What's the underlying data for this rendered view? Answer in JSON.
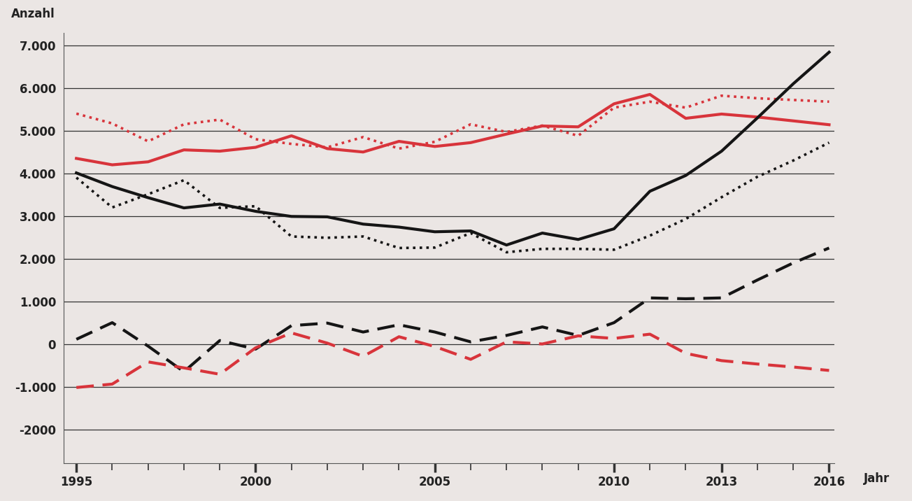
{
  "chart_data": {
    "type": "line",
    "y_label": "Anzahl",
    "x_label": "Jahr",
    "categories": [
      "1995",
      null,
      null,
      null,
      null,
      "2000",
      null,
      null,
      null,
      null,
      "2005",
      null,
      null,
      null,
      null,
      "2010",
      null,
      null,
      "2013",
      null,
      null,
      "2016"
    ],
    "ylim": [
      -2800,
      7300
    ],
    "yticks": [
      {
        "value": 7000,
        "label": "7.000"
      },
      {
        "value": 6000,
        "label": "6.000"
      },
      {
        "value": 5000,
        "label": "5.000"
      },
      {
        "value": 4000,
        "label": "4.000"
      },
      {
        "value": 3000,
        "label": "3.000"
      },
      {
        "value": 2000,
        "label": "2.000"
      },
      {
        "value": 1000,
        "label": "1.000"
      },
      0,
      {
        "value": -1000,
        "label": "-1.000"
      },
      -2000
    ],
    "grid": true,
    "series": [
      {
        "color": "#d8343b",
        "line_style": "solid",
        "values": [
          4350,
          4200,
          4270,
          4550,
          4520,
          4610,
          4880,
          4580,
          4500,
          4750,
          4630,
          4720,
          4920,
          5110,
          5090,
          5630,
          5850,
          5290,
          5390,
          5320,
          5230,
          5140
        ]
      },
      {
        "color": "#d8343b",
        "line_style": "dotted",
        "values": [
          5400,
          5170,
          4750,
          5150,
          5260,
          4800,
          4690,
          4610,
          4850,
          4580,
          4740,
          5150,
          4970,
          5120,
          4880,
          5540,
          5680,
          5540,
          5820,
          5760,
          5720,
          5680
        ]
      },
      {
        "color": "#151515",
        "line_style": "solid",
        "values": [
          4010,
          3690,
          3430,
          3190,
          3280,
          3110,
          2990,
          2980,
          2810,
          2740,
          2630,
          2650,
          2320,
          2600,
          2450,
          2700,
          3580,
          3950,
          4520,
          5300,
          6100,
          6840
        ]
      },
      {
        "color": "#151515",
        "line_style": "dotted",
        "values": [
          3900,
          3200,
          3510,
          3840,
          3190,
          3230,
          2520,
          2490,
          2520,
          2250,
          2260,
          2600,
          2150,
          2230,
          2230,
          2210,
          2540,
          2930,
          3440,
          3920,
          4300,
          4720
        ]
      },
      {
        "color": "#151515",
        "line_style": "dashed",
        "values": [
          110,
          500,
          -50,
          -650,
          80,
          -120,
          430,
          490,
          280,
          450,
          280,
          50,
          200,
          400,
          200,
          500,
          1080,
          1060,
          1080,
          1500,
          1900,
          2250
        ]
      },
      {
        "color": "#d8343b",
        "line_style": "dashed",
        "values": [
          -1020,
          -940,
          -420,
          -560,
          -710,
          -90,
          260,
          20,
          -290,
          170,
          -60,
          -360,
          50,
          0,
          190,
          130,
          230,
          -220,
          -390,
          -470,
          -540,
          -620
        ]
      }
    ]
  }
}
